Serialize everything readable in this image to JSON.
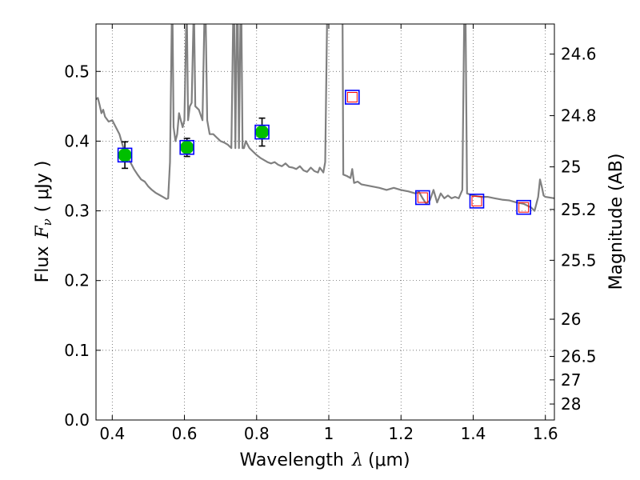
{
  "chart_data": {
    "type": "scatter",
    "xlabel_prefix": "Wavelength",
    "xlabel_symbol": "λ",
    "xlabel_unit": "(μm)",
    "ylabel_prefix": "Flux",
    "ylabel_symbol": "F",
    "ylabel_sub": "ν",
    "ylabel_unit": "( μJy )",
    "y2label": "Magnitude (AB)",
    "xlim": [
      0.355,
      1.625
    ],
    "ylim": [
      0.0,
      0.568
    ],
    "x_ticks": [
      0.4,
      0.6,
      0.8,
      1.0,
      1.2,
      1.4,
      1.6
    ],
    "x_tick_labels": [
      "0.4",
      "0.6",
      "0.8",
      "1",
      "1.2",
      "1.4",
      "1.6"
    ],
    "y_ticks": [
      0.0,
      0.1,
      0.2,
      0.3,
      0.4,
      0.5
    ],
    "y_tick_labels": [
      "0.0",
      "0.1",
      "0.2",
      "0.3",
      "0.4",
      "0.5"
    ],
    "y2_ticks": [
      24.6,
      24.8,
      25,
      25.2,
      25.5,
      26,
      26.5,
      27,
      28
    ],
    "y2_tick_labels": [
      "24.6",
      "24.8",
      "25",
      "25.2",
      "25.5",
      "26",
      "26.5",
      "27",
      "28"
    ],
    "grid": true,
    "model_spectrum": {
      "color": "#808080",
      "points": [
        [
          0.355,
          0.46
        ],
        [
          0.36,
          0.462
        ],
        [
          0.365,
          0.452
        ],
        [
          0.37,
          0.44
        ],
        [
          0.375,
          0.445
        ],
        [
          0.38,
          0.435
        ],
        [
          0.39,
          0.428
        ],
        [
          0.4,
          0.43
        ],
        [
          0.41,
          0.42
        ],
        [
          0.42,
          0.41
        ],
        [
          0.43,
          0.392
        ],
        [
          0.44,
          0.378
        ],
        [
          0.45,
          0.37
        ],
        [
          0.46,
          0.36
        ],
        [
          0.47,
          0.352
        ],
        [
          0.48,
          0.345
        ],
        [
          0.49,
          0.342
        ],
        [
          0.5,
          0.335
        ],
        [
          0.51,
          0.33
        ],
        [
          0.52,
          0.326
        ],
        [
          0.53,
          0.323
        ],
        [
          0.54,
          0.32
        ],
        [
          0.55,
          0.317
        ],
        [
          0.555,
          0.318
        ],
        [
          0.56,
          0.37
        ],
        [
          0.565,
          0.57
        ],
        [
          0.567,
          0.57
        ],
        [
          0.57,
          0.42
        ],
        [
          0.575,
          0.4
        ],
        [
          0.58,
          0.41
        ],
        [
          0.585,
          0.44
        ],
        [
          0.59,
          0.43
        ],
        [
          0.595,
          0.42
        ],
        [
          0.6,
          0.43
        ],
        [
          0.605,
          0.57
        ],
        [
          0.607,
          0.57
        ],
        [
          0.61,
          0.43
        ],
        [
          0.615,
          0.45
        ],
        [
          0.62,
          0.455
        ],
        [
          0.625,
          0.57
        ],
        [
          0.627,
          0.57
        ],
        [
          0.63,
          0.45
        ],
        [
          0.64,
          0.445
        ],
        [
          0.65,
          0.43
        ],
        [
          0.655,
          0.57
        ],
        [
          0.659,
          0.57
        ],
        [
          0.663,
          0.43
        ],
        [
          0.67,
          0.41
        ],
        [
          0.68,
          0.41
        ],
        [
          0.69,
          0.405
        ],
        [
          0.7,
          0.4
        ],
        [
          0.71,
          0.398
        ],
        [
          0.72,
          0.395
        ],
        [
          0.73,
          0.39
        ],
        [
          0.735,
          0.57
        ],
        [
          0.738,
          0.57
        ],
        [
          0.741,
          0.39
        ],
        [
          0.745,
          0.57
        ],
        [
          0.748,
          0.57
        ],
        [
          0.751,
          0.39
        ],
        [
          0.755,
          0.57
        ],
        [
          0.758,
          0.57
        ],
        [
          0.761,
          0.39
        ],
        [
          0.765,
          0.39
        ],
        [
          0.77,
          0.4
        ],
        [
          0.78,
          0.39
        ],
        [
          0.79,
          0.385
        ],
        [
          0.8,
          0.38
        ],
        [
          0.81,
          0.376
        ],
        [
          0.82,
          0.373
        ],
        [
          0.83,
          0.37
        ],
        [
          0.84,
          0.368
        ],
        [
          0.85,
          0.37
        ],
        [
          0.86,
          0.366
        ],
        [
          0.87,
          0.364
        ],
        [
          0.88,
          0.368
        ],
        [
          0.89,
          0.363
        ],
        [
          0.9,
          0.362
        ],
        [
          0.91,
          0.36
        ],
        [
          0.92,
          0.364
        ],
        [
          0.93,
          0.358
        ],
        [
          0.94,
          0.356
        ],
        [
          0.95,
          0.362
        ],
        [
          0.96,
          0.357
        ],
        [
          0.97,
          0.355
        ],
        [
          0.975,
          0.362
        ],
        [
          0.985,
          0.355
        ],
        [
          0.99,
          0.37
        ],
        [
          0.995,
          0.57
        ],
        [
          1.038,
          0.57
        ],
        [
          1.04,
          0.352
        ],
        [
          1.05,
          0.35
        ],
        [
          1.06,
          0.347
        ],
        [
          1.065,
          0.36
        ],
        [
          1.07,
          0.34
        ],
        [
          1.08,
          0.342
        ],
        [
          1.09,
          0.338
        ],
        [
          1.1,
          0.337
        ],
        [
          1.12,
          0.335
        ],
        [
          1.14,
          0.333
        ],
        [
          1.16,
          0.33
        ],
        [
          1.18,
          0.333
        ],
        [
          1.2,
          0.33
        ],
        [
          1.22,
          0.328
        ],
        [
          1.24,
          0.325
        ],
        [
          1.25,
          0.327
        ],
        [
          1.26,
          0.318
        ],
        [
          1.27,
          0.31
        ],
        [
          1.28,
          0.315
        ],
        [
          1.29,
          0.33
        ],
        [
          1.3,
          0.312
        ],
        [
          1.31,
          0.325
        ],
        [
          1.32,
          0.318
        ],
        [
          1.33,
          0.322
        ],
        [
          1.34,
          0.318
        ],
        [
          1.35,
          0.32
        ],
        [
          1.36,
          0.318
        ],
        [
          1.37,
          0.33
        ],
        [
          1.375,
          0.57
        ],
        [
          1.379,
          0.57
        ],
        [
          1.383,
          0.325
        ],
        [
          1.4,
          0.322
        ],
        [
          1.42,
          0.32
        ],
        [
          1.44,
          0.32
        ],
        [
          1.46,
          0.318
        ],
        [
          1.48,
          0.316
        ],
        [
          1.5,
          0.315
        ],
        [
          1.52,
          0.312
        ],
        [
          1.54,
          0.31
        ],
        [
          1.56,
          0.305
        ],
        [
          1.57,
          0.3
        ],
        [
          1.58,
          0.32
        ],
        [
          1.585,
          0.345
        ],
        [
          1.59,
          0.335
        ],
        [
          1.595,
          0.322
        ],
        [
          1.6,
          0.32
        ],
        [
          1.625,
          0.318
        ]
      ]
    },
    "model_boxes": {
      "color": "#0000ff",
      "points": [
        [
          0.435,
          0.38
        ],
        [
          0.607,
          0.391
        ],
        [
          0.815,
          0.413
        ],
        [
          1.065,
          0.463
        ],
        [
          1.26,
          0.319
        ],
        [
          1.41,
          0.314
        ],
        [
          1.54,
          0.305
        ]
      ]
    },
    "detections": {
      "color": "#00bf00",
      "points": [
        {
          "x": 0.435,
          "y": 0.38,
          "err": 0.019
        },
        {
          "x": 0.607,
          "y": 0.391,
          "err": 0.013
        },
        {
          "x": 0.815,
          "y": 0.413,
          "err": 0.02
        }
      ]
    },
    "upper_limits": {
      "color": "#ff0000",
      "points": [
        [
          1.065,
          0.463
        ],
        [
          1.26,
          0.319
        ],
        [
          1.41,
          0.314
        ],
        [
          1.54,
          0.305
        ]
      ]
    }
  }
}
